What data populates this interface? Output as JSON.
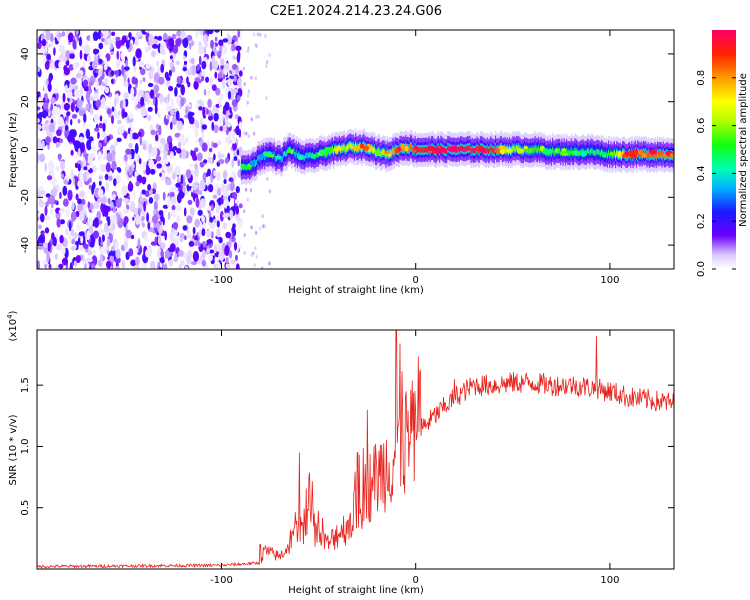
{
  "title": "C2E1.2024.214.23.24.G06",
  "chart_data": [
    {
      "type": "heatmap",
      "xlabel": "Height of straight line (km)",
      "ylabel": "Frequency (Hz)",
      "xlim": [
        -195,
        133
      ],
      "ylim": [
        -50,
        50
      ],
      "x_ticks": [
        -100,
        0,
        100
      ],
      "x_tick_labels": [
        "-100",
        "0",
        "100"
      ],
      "y_ticks": [
        -40,
        -20,
        0,
        20,
        40
      ],
      "y_tick_labels": [
        "-40",
        "-20",
        "0",
        "20",
        "40"
      ],
      "colorbar": {
        "label": "Normalized spectral amplitude",
        "range": [
          0,
          1
        ],
        "ticks": [
          0.0,
          0.2,
          0.4,
          0.6,
          0.8
        ],
        "tick_labels": [
          "0.0",
          "0.2",
          "0.4",
          "0.6",
          "0.8"
        ]
      },
      "noise_region_x": [
        -195,
        -90
      ],
      "ridge": {
        "x": [
          -90,
          -85,
          -80,
          -75,
          -70,
          -65,
          -60,
          -55,
          -50,
          -45,
          -40,
          -35,
          -30,
          -25,
          -20,
          -15,
          -10,
          -5,
          0,
          10,
          20,
          30,
          40,
          50,
          60,
          70,
          80,
          90,
          100,
          110,
          120,
          133
        ],
        "y": [
          -8,
          -7,
          -3,
          -2,
          -4,
          0,
          -3,
          -3,
          -2,
          -1,
          0,
          1,
          1,
          1,
          -1,
          -2,
          0,
          1,
          0,
          0,
          0,
          0,
          0,
          0,
          0,
          -1,
          -1,
          -1,
          -2,
          -2,
          -2,
          -2
        ],
        "amplitude": [
          0.45,
          0.4,
          0.35,
          0.4,
          0.35,
          0.45,
          0.35,
          0.4,
          0.45,
          0.55,
          0.6,
          0.65,
          0.7,
          0.75,
          0.6,
          0.65,
          0.85,
          0.8,
          0.9,
          0.95,
          0.98,
          0.95,
          0.9,
          0.6,
          0.55,
          0.5,
          0.5,
          0.45,
          0.5,
          0.9,
          0.85,
          0.8
        ]
      }
    },
    {
      "type": "line",
      "xlabel": "Height of straight line (km)",
      "ylabel": "SNR (10 * v/v)",
      "y_multiplier": "(x10",
      "y_multiplier_exp": "4",
      "xlim": [
        -195,
        133
      ],
      "ylim": [
        0,
        1.95
      ],
      "x_ticks": [
        -100,
        0,
        100
      ],
      "x_tick_labels": [
        "-100",
        "0",
        "100"
      ],
      "y_ticks": [
        0.5,
        1.0,
        1.5
      ],
      "y_tick_labels": [
        "0.5",
        "1.0",
        "1.5"
      ],
      "color": "#e8221c",
      "envelope": {
        "x": [
          -195,
          -100,
          -80,
          -78,
          -70,
          -60,
          -55,
          -50,
          -45,
          -40,
          -35,
          -30,
          -25,
          -20,
          -15,
          -10,
          -5,
          0,
          10,
          20,
          30,
          40,
          50,
          60,
          70,
          80,
          90,
          100,
          110,
          120,
          133
        ],
        "y": [
          0.02,
          0.03,
          0.05,
          0.15,
          0.1,
          0.3,
          0.45,
          0.25,
          0.2,
          0.3,
          0.35,
          0.5,
          0.65,
          0.75,
          0.85,
          0.95,
          1.0,
          1.1,
          1.25,
          1.4,
          1.5,
          1.5,
          1.52,
          1.52,
          1.5,
          1.5,
          1.48,
          1.45,
          1.4,
          1.38,
          1.35
        ]
      },
      "spikes": [
        {
          "x": -80,
          "y": 0.2
        },
        {
          "x": -60,
          "y": 0.95
        },
        {
          "x": -55,
          "y": 0.75
        },
        {
          "x": -30,
          "y": 0.95
        },
        {
          "x": -25,
          "y": 1.3
        },
        {
          "x": -10,
          "y": 1.95
        },
        {
          "x": -5,
          "y": 1.45
        },
        {
          "x": 20,
          "y": 1.55
        },
        {
          "x": 93,
          "y": 1.9
        }
      ]
    }
  ]
}
